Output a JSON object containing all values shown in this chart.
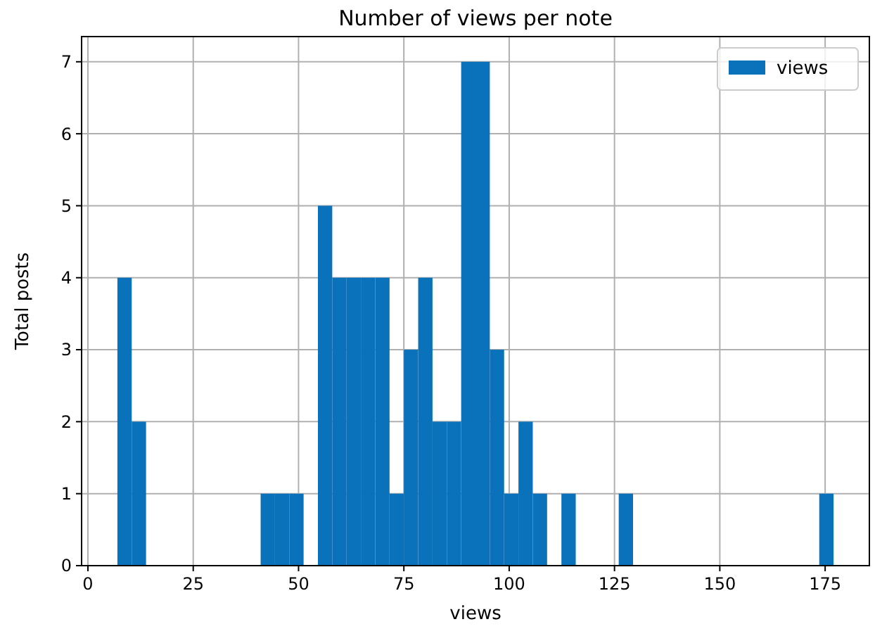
{
  "chart_data": {
    "type": "histogram",
    "title": "Number of views per note",
    "xlabel": "views",
    "ylabel": "Total posts",
    "bins": [
      7,
      10.4,
      13.8,
      17.2,
      20.6,
      24,
      27.4,
      30.8,
      34.2,
      37.6,
      41,
      44.4,
      47.8,
      51.2,
      54.6,
      58,
      61.4,
      64.8,
      68.2,
      71.6,
      75,
      78.4,
      81.8,
      85.2,
      88.6,
      92,
      95.4,
      98.8,
      102.2,
      105.6,
      109,
      112.4,
      115.8,
      119.2,
      122.6,
      126,
      129.4,
      132.8,
      136.2,
      139.6,
      143,
      146.4,
      149.8,
      153.2,
      156.6,
      160,
      163.4,
      166.8,
      170.2,
      173.6,
      177
    ],
    "series": [
      {
        "name": "views",
        "color": "#0a72ba",
        "values": [
          4,
          2,
          0,
          0,
          0,
          0,
          0,
          0,
          0,
          0,
          1,
          1,
          1,
          0,
          5,
          4,
          4,
          4,
          4,
          1,
          3,
          4,
          2,
          2,
          7,
          7,
          3,
          1,
          2,
          1,
          0,
          1,
          0,
          0,
          0,
          1,
          0,
          0,
          0,
          0,
          0,
          0,
          0,
          0,
          0,
          0,
          0,
          0,
          0,
          1
        ]
      }
    ],
    "xlim": [
      -1.5,
      185.5
    ],
    "xticks": [
      0,
      25,
      50,
      75,
      100,
      125,
      150,
      175
    ],
    "ylim": [
      0,
      7.35
    ],
    "yticks": [
      0,
      1,
      2,
      3,
      4,
      5,
      6,
      7
    ],
    "grid": true,
    "legend": "top right"
  }
}
